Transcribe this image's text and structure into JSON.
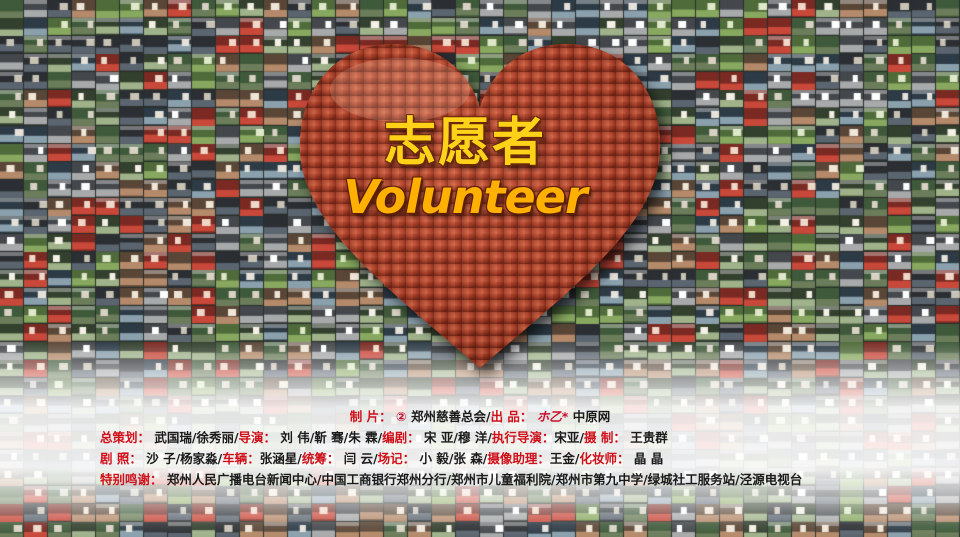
{
  "title": {
    "chinese": "志愿者",
    "english": "Volunteer"
  },
  "credits": {
    "line1": {
      "producer_label": "制 片：",
      "producer_mark": "②",
      "producer_name": "郑州慈善总会",
      "product_label": "出 品：",
      "product_logo": "ホ乙*",
      "product_name": "中原网"
    },
    "line2": {
      "planner_label": "总策划：",
      "planner_names": "武国瑞/徐秀丽",
      "director_label": "导演：",
      "director_names": "刘 伟/靳 骞/朱 霖",
      "writer_label": "编剧：",
      "writer_names": "宋 亚/穆 洋",
      "exec_director_label": "执行导演：",
      "exec_director_names": "宋亚",
      "producer_label": "摄 制：",
      "producer_names": "王贵群"
    },
    "line3": {
      "photo_label": "剧 照：",
      "photo_names": "沙 子/杨家淼",
      "vehicle_label": "车辆：",
      "vehicle_names": "张涵星",
      "coordinator_label": "统筹：",
      "coordinator_names": "闫 云",
      "script_label": "场记：",
      "script_names": "小 毅/张 森",
      "camera_asst_label": "摄像助理：",
      "camera_asst_names": "王金",
      "makeup_label": "化妆师：",
      "makeup_names": "晶 晶"
    },
    "line4": {
      "thanks_label": "特别鸣谢：",
      "thanks_names": "郑州人民广播电台新闻中心/中国工商银行郑州分行/郑州市儿童福利院/郑州市第九中学/绿城社工服务站/泾源电视台"
    }
  },
  "colors": {
    "title_cn": "#ffd21a",
    "title_en": "#ffb000",
    "label_red": "#d0101a",
    "heart": "#b8432a"
  }
}
